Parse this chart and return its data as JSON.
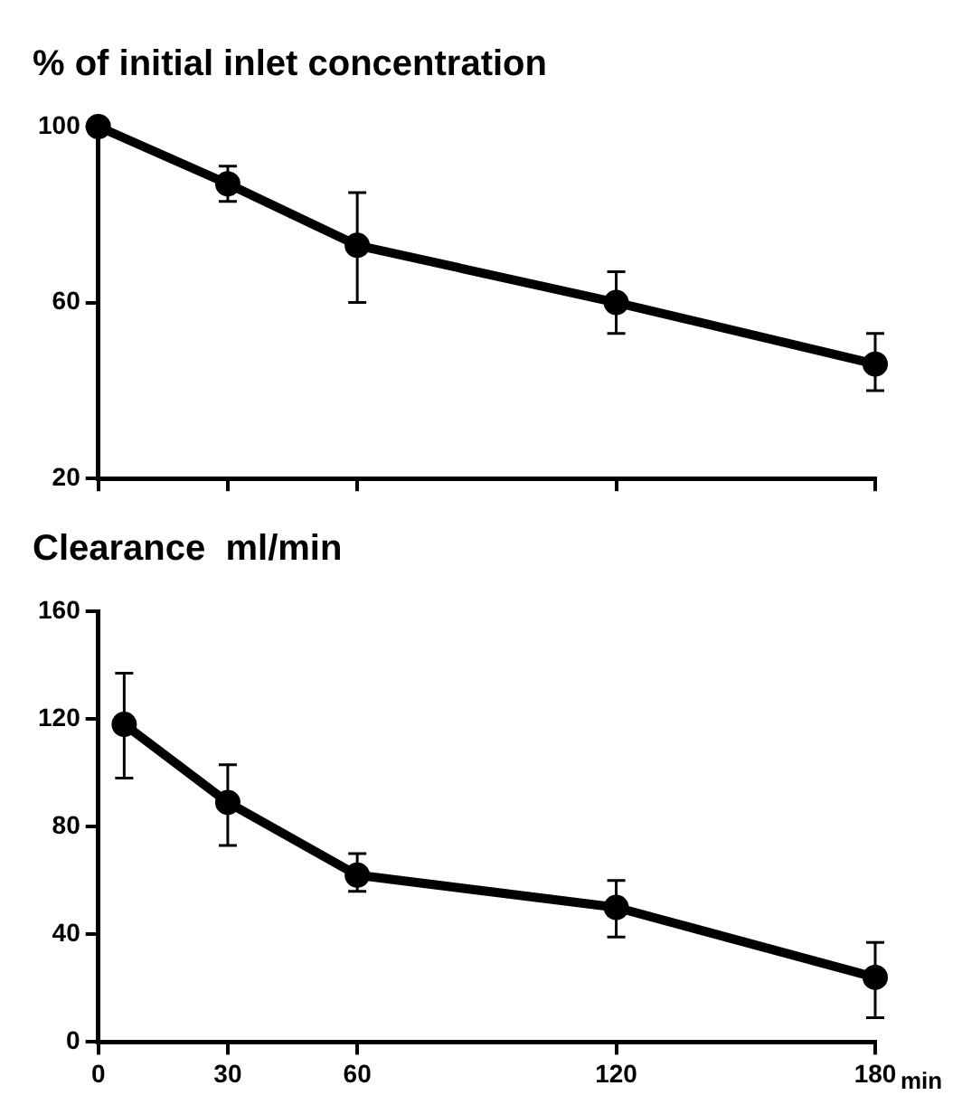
{
  "chart_data": [
    {
      "type": "line",
      "title": "% of initial inlet concentration",
      "x": [
        0,
        30,
        60,
        120,
        180
      ],
      "series": [
        {
          "color": "#000000",
          "values": [
            100,
            87,
            73,
            60,
            46
          ],
          "errors": [
            null,
            [
              83,
              91
            ],
            [
              60,
              85
            ],
            [
              53,
              67
            ],
            [
              40,
              53
            ]
          ]
        }
      ],
      "xlim": [
        0,
        180
      ],
      "xticks": [
        {
          "value": 0,
          "label": null
        },
        {
          "value": 30,
          "label": null
        },
        {
          "value": 60,
          "label": null
        },
        {
          "value": 120,
          "label": null
        },
        {
          "value": 180,
          "label": null
        }
      ],
      "ylim": [
        20,
        100
      ],
      "yticks": [
        20,
        60,
        100
      ],
      "tick_labels": "y",
      "grid": false,
      "legend": false,
      "marker": "circle",
      "line_style": "solid"
    },
    {
      "type": "line",
      "title": "Clearance  ml/min",
      "xlabel": "min",
      "x": [
        6,
        30,
        60,
        120,
        180
      ],
      "series": [
        {
          "color": "#000000",
          "values": [
            118,
            89,
            62,
            50,
            24
          ],
          "errors": [
            [
              98,
              137
            ],
            [
              73,
              103
            ],
            [
              56,
              70
            ],
            [
              39,
              60
            ],
            [
              9,
              37
            ]
          ]
        }
      ],
      "xlim": [
        0,
        180
      ],
      "xticks": [
        0,
        30,
        60,
        120,
        180
      ],
      "ylim": [
        0,
        160
      ],
      "yticks": [
        0,
        40,
        80,
        120,
        160
      ],
      "grid": false,
      "legend": false,
      "marker": "circle",
      "line_style": "solid"
    }
  ]
}
